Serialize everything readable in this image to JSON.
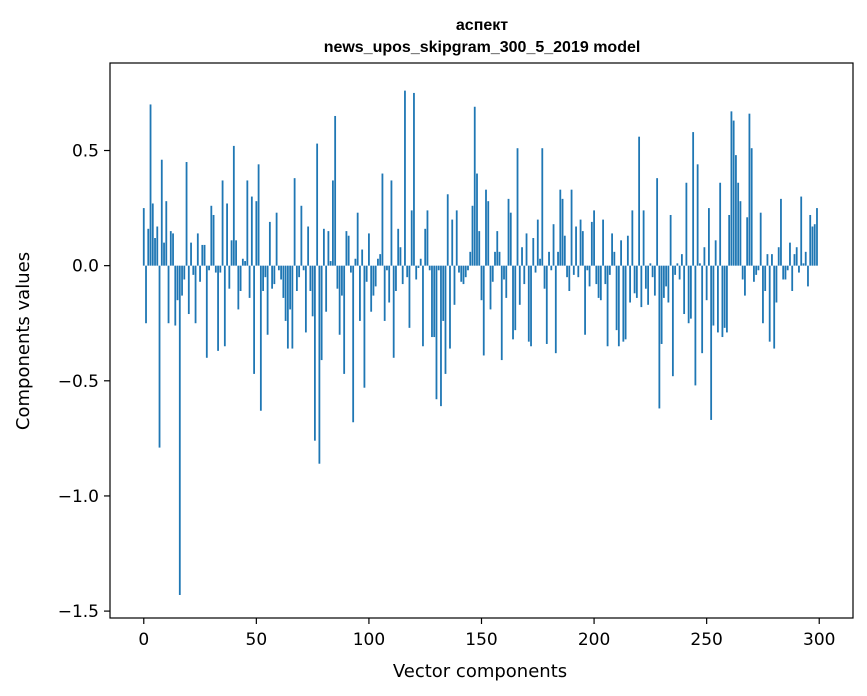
{
  "chart_data": {
    "type": "bar",
    "title": "аспект",
    "subtitle": "news_upos_skipgram_300_5_2019 model",
    "xlabel": "Vector components",
    "ylabel": "Components values",
    "xlim": [
      -15,
      315
    ],
    "ylim": [
      -1.53,
      0.88
    ],
    "xticks": [
      0,
      50,
      100,
      150,
      200,
      250,
      300
    ],
    "xtick_labels": [
      "0",
      "50",
      "100",
      "150",
      "200",
      "250",
      "300"
    ],
    "yticks": [
      0.5,
      0.0,
      -0.5,
      -1.0,
      -1.5
    ],
    "ytick_labels": [
      "0.5",
      "0.0",
      "−0.5",
      "−1.0",
      "−1.5"
    ],
    "bar_color": "#1f77b4",
    "grid": false,
    "values": [
      0.25,
      -0.25,
      0.16,
      0.7,
      0.27,
      0.12,
      0.17,
      -0.79,
      0.46,
      0.1,
      0.28,
      -0.25,
      0.15,
      0.14,
      -0.26,
      -0.15,
      -1.43,
      -0.13,
      -0.06,
      0.45,
      -0.21,
      0.1,
      -0.04,
      -0.25,
      0.14,
      -0.07,
      0.09,
      0.09,
      -0.4,
      -0.02,
      0.26,
      0.22,
      -0.03,
      -0.37,
      -0.03,
      0.37,
      -0.35,
      0.27,
      -0.1,
      0.11,
      0.52,
      0.11,
      -0.19,
      -0.11,
      0.03,
      0.02,
      0.37,
      -0.14,
      0.3,
      -0.47,
      0.28,
      0.44,
      -0.63,
      -0.11,
      -0.05,
      -0.3,
      0.19,
      -0.1,
      -0.08,
      0.23,
      -0.02,
      -0.06,
      -0.14,
      -0.24,
      -0.36,
      -0.19,
      -0.36,
      0.38,
      -0.11,
      -0.05,
      0.26,
      -0.02,
      -0.29,
      0.17,
      -0.11,
      -0.22,
      -0.76,
      0.53,
      -0.86,
      -0.41,
      0.16,
      -0.2,
      0.15,
      0.02,
      0.37,
      0.65,
      -0.1,
      -0.3,
      -0.13,
      -0.47,
      0.15,
      0.13,
      -0.03,
      -0.68,
      0.03,
      0.23,
      -0.24,
      0.07,
      -0.53,
      -0.07,
      0.14,
      -0.2,
      -0.13,
      -0.09,
      0.03,
      0.05,
      0.4,
      -0.24,
      -0.02,
      -0.16,
      0.37,
      -0.4,
      -0.11,
      0.16,
      0.08,
      -0.08,
      0.76,
      -0.05,
      -0.27,
      0.24,
      0.75,
      -0.06,
      -0.01,
      0.03,
      -0.35,
      0.16,
      0.24,
      -0.02,
      -0.31,
      -0.31,
      -0.58,
      -0.02,
      -0.61,
      -0.24,
      -0.47,
      0.31,
      -0.36,
      0.2,
      -0.17,
      0.24,
      -0.03,
      -0.07,
      -0.08,
      -0.05,
      -0.02,
      0.06,
      0.26,
      0.69,
      0.4,
      0.15,
      -0.15,
      -0.39,
      0.33,
      0.28,
      -0.19,
      -0.07,
      0.06,
      0.15,
      0.06,
      -0.41,
      -0.06,
      -0.14,
      0.29,
      0.23,
      -0.32,
      -0.28,
      0.51,
      -0.17,
      0.08,
      -0.08,
      0.14,
      -0.33,
      -0.35,
      0.12,
      -0.03,
      0.2,
      0.03,
      0.51,
      -0.1,
      -0.34,
      0.06,
      -0.02,
      0.18,
      -0.38,
      0.06,
      0.33,
      0.29,
      0.13,
      -0.05,
      -0.11,
      0.33,
      -0.04,
      0.17,
      -0.05,
      0.2,
      0.15,
      -0.3,
      -0.02,
      -0.09,
      0.19,
      0.24,
      -0.08,
      -0.14,
      -0.15,
      0.2,
      -0.08,
      -0.35,
      -0.04,
      0.14,
      0.06,
      -0.28,
      -0.35,
      0.11,
      -0.33,
      -0.32,
      0.13,
      -0.16,
      0.24,
      -0.12,
      -0.14,
      0.56,
      -0.18,
      0.24,
      -0.1,
      -0.17,
      0.01,
      -0.05,
      -0.13,
      0.38,
      -0.62,
      -0.34,
      -0.14,
      -0.09,
      -0.16,
      0.22,
      -0.48,
      -0.04,
      0.01,
      -0.06,
      0.05,
      -0.21,
      0.36,
      -0.25,
      -0.23,
      0.58,
      -0.52,
      0.44,
      0.01,
      -0.38,
      0.08,
      -0.15,
      0.25,
      -0.67,
      -0.26,
      0.11,
      -0.29,
      0.36,
      -0.31,
      -0.27,
      -0.29,
      0.22,
      0.67,
      0.63,
      0.48,
      0.36,
      0.28,
      -0.06,
      -0.13,
      0.21,
      0.66,
      0.51,
      -0.07,
      -0.04,
      -0.02,
      0.23,
      -0.25,
      -0.11,
      0.05,
      -0.33,
      0.05,
      -0.36,
      -0.16,
      0.08,
      0.29,
      -0.06,
      -0.06,
      -0.02,
      0.1,
      -0.11,
      0.05,
      0.08,
      -0.03,
      0.3,
      0.01,
      0.06,
      -0.09,
      0.22,
      0.17,
      0.18,
      0.25
    ]
  }
}
